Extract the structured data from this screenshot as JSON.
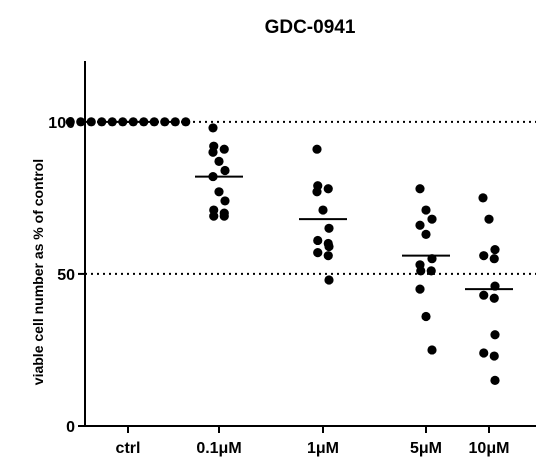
{
  "chart_data": {
    "type": "scatter",
    "title": "GDC-0941",
    "ylabel": "viable cell number as % of control",
    "xlabel": "",
    "ylim": [
      0,
      120
    ],
    "yticks": [
      0,
      50,
      100
    ],
    "reference_lines": [
      50,
      100
    ],
    "categories": [
      "ctrl",
      "0.1μM",
      "1μM",
      "5μM",
      "10μM"
    ],
    "groups": [
      {
        "category": "ctrl",
        "mean": 100,
        "values": [
          100,
          100,
          100,
          100,
          100,
          100,
          100,
          100,
          100,
          100,
          100,
          100
        ]
      },
      {
        "category": "0.1μM",
        "mean": 82,
        "values": [
          98,
          92,
          91,
          90,
          87,
          84,
          82,
          77,
          74,
          71,
          70,
          69,
          69
        ]
      },
      {
        "category": "1μM",
        "mean": 68,
        "values": [
          91,
          79,
          78,
          77,
          71,
          65,
          61,
          60,
          59,
          57,
          56,
          48
        ]
      },
      {
        "category": "5μM",
        "mean": 56,
        "values": [
          78,
          71,
          68,
          66,
          63,
          55,
          53,
          51,
          51,
          45,
          36,
          25
        ]
      },
      {
        "category": "10μM",
        "mean": 45,
        "values": [
          75,
          68,
          58,
          56,
          55,
          46,
          43,
          42,
          30,
          24,
          23,
          15
        ]
      }
    ],
    "colors": {
      "points": "#000000",
      "axis": "#000000"
    }
  }
}
